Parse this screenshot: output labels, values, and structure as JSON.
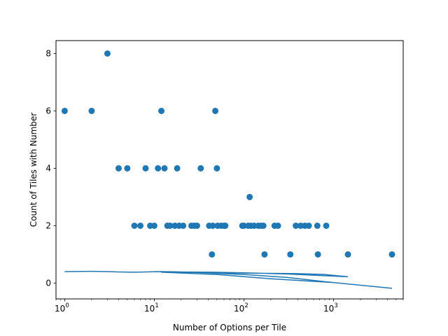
{
  "chart_data": {
    "type": "scatter",
    "title": "",
    "xlabel": "Number of Options per Tile",
    "ylabel": "Count of Tiles with Number",
    "xscale": "log",
    "xlim": [
      0.8,
      6000
    ],
    "ylim": [
      -0.55,
      8.45
    ],
    "grid": false,
    "legend": "none",
    "xticks": [
      {
        "value": 1,
        "base": "10",
        "exp": "0"
      },
      {
        "value": 10,
        "base": "10",
        "exp": "1"
      },
      {
        "value": 100,
        "base": "10",
        "exp": "2"
      },
      {
        "value": 1000,
        "base": "10",
        "exp": "3"
      }
    ],
    "yticks": [
      {
        "value": 0,
        "label": "0"
      },
      {
        "value": 2,
        "label": "2"
      },
      {
        "value": 4,
        "label": "4"
      },
      {
        "value": 6,
        "label": "6"
      },
      {
        "value": 8,
        "label": "8"
      }
    ],
    "series": [
      {
        "kind": "scatter",
        "color": "#1f77b4",
        "points": [
          [
            1,
            6
          ],
          [
            2,
            6
          ],
          [
            3,
            8
          ],
          [
            4,
            4
          ],
          [
            5,
            4
          ],
          [
            6,
            2
          ],
          [
            7,
            2
          ],
          [
            8,
            4
          ],
          [
            9,
            2
          ],
          [
            10,
            2
          ],
          [
            11,
            4
          ],
          [
            12,
            6
          ],
          [
            13,
            4
          ],
          [
            14,
            2
          ],
          [
            15,
            2
          ],
          [
            17,
            2
          ],
          [
            18,
            4
          ],
          [
            19,
            2
          ],
          [
            21,
            2
          ],
          [
            26,
            2
          ],
          [
            28,
            2
          ],
          [
            30,
            2
          ],
          [
            33,
            4
          ],
          [
            41,
            2
          ],
          [
            44,
            1
          ],
          [
            45,
            2
          ],
          [
            48,
            6
          ],
          [
            50,
            4
          ],
          [
            51,
            2
          ],
          [
            56,
            2
          ],
          [
            60,
            2
          ],
          [
            62,
            2
          ],
          [
            96,
            2
          ],
          [
            100,
            2
          ],
          [
            112,
            2
          ],
          [
            116,
            3
          ],
          [
            120,
            2
          ],
          [
            130,
            2
          ],
          [
            145,
            2
          ],
          [
            156,
            2
          ],
          [
            165,
            2
          ],
          [
            170,
            1
          ],
          [
            220,
            2
          ],
          [
            240,
            2
          ],
          [
            330,
            1
          ],
          [
            380,
            2
          ],
          [
            430,
            2
          ],
          [
            480,
            2
          ],
          [
            530,
            2
          ],
          [
            660,
            2
          ],
          [
            670,
            1
          ],
          [
            830,
            2
          ],
          [
            1450,
            1
          ],
          [
            4500,
            1
          ]
        ]
      },
      {
        "kind": "line",
        "color": "#1f77b4",
        "points": [
          [
            1,
            0.4
          ],
          [
            2,
            0.41
          ],
          [
            3,
            0.4
          ],
          [
            4,
            0.39
          ],
          [
            6,
            0.38
          ],
          [
            8,
            0.39
          ],
          [
            12,
            0.4
          ],
          [
            20,
            0.39
          ],
          [
            30,
            0.37
          ],
          [
            50,
            0.36
          ],
          [
            100,
            0.35
          ],
          [
            200,
            0.34
          ],
          [
            400,
            0.33
          ],
          [
            800,
            0.3
          ],
          [
            1450,
            0.22
          ],
          [
            300,
            0.32
          ],
          [
            100,
            0.36
          ],
          [
            45,
            0.38
          ],
          [
            20,
            0.39
          ],
          [
            12,
            0.38
          ],
          [
            50,
            0.3
          ],
          [
            200,
            0.15
          ],
          [
            1000,
            0.02
          ],
          [
            4500,
            -0.18
          ],
          [
            800,
            0.05
          ],
          [
            300,
            0.2
          ],
          [
            100,
            0.3
          ],
          [
            30,
            0.37
          ],
          [
            10,
            0.4
          ]
        ]
      }
    ]
  }
}
